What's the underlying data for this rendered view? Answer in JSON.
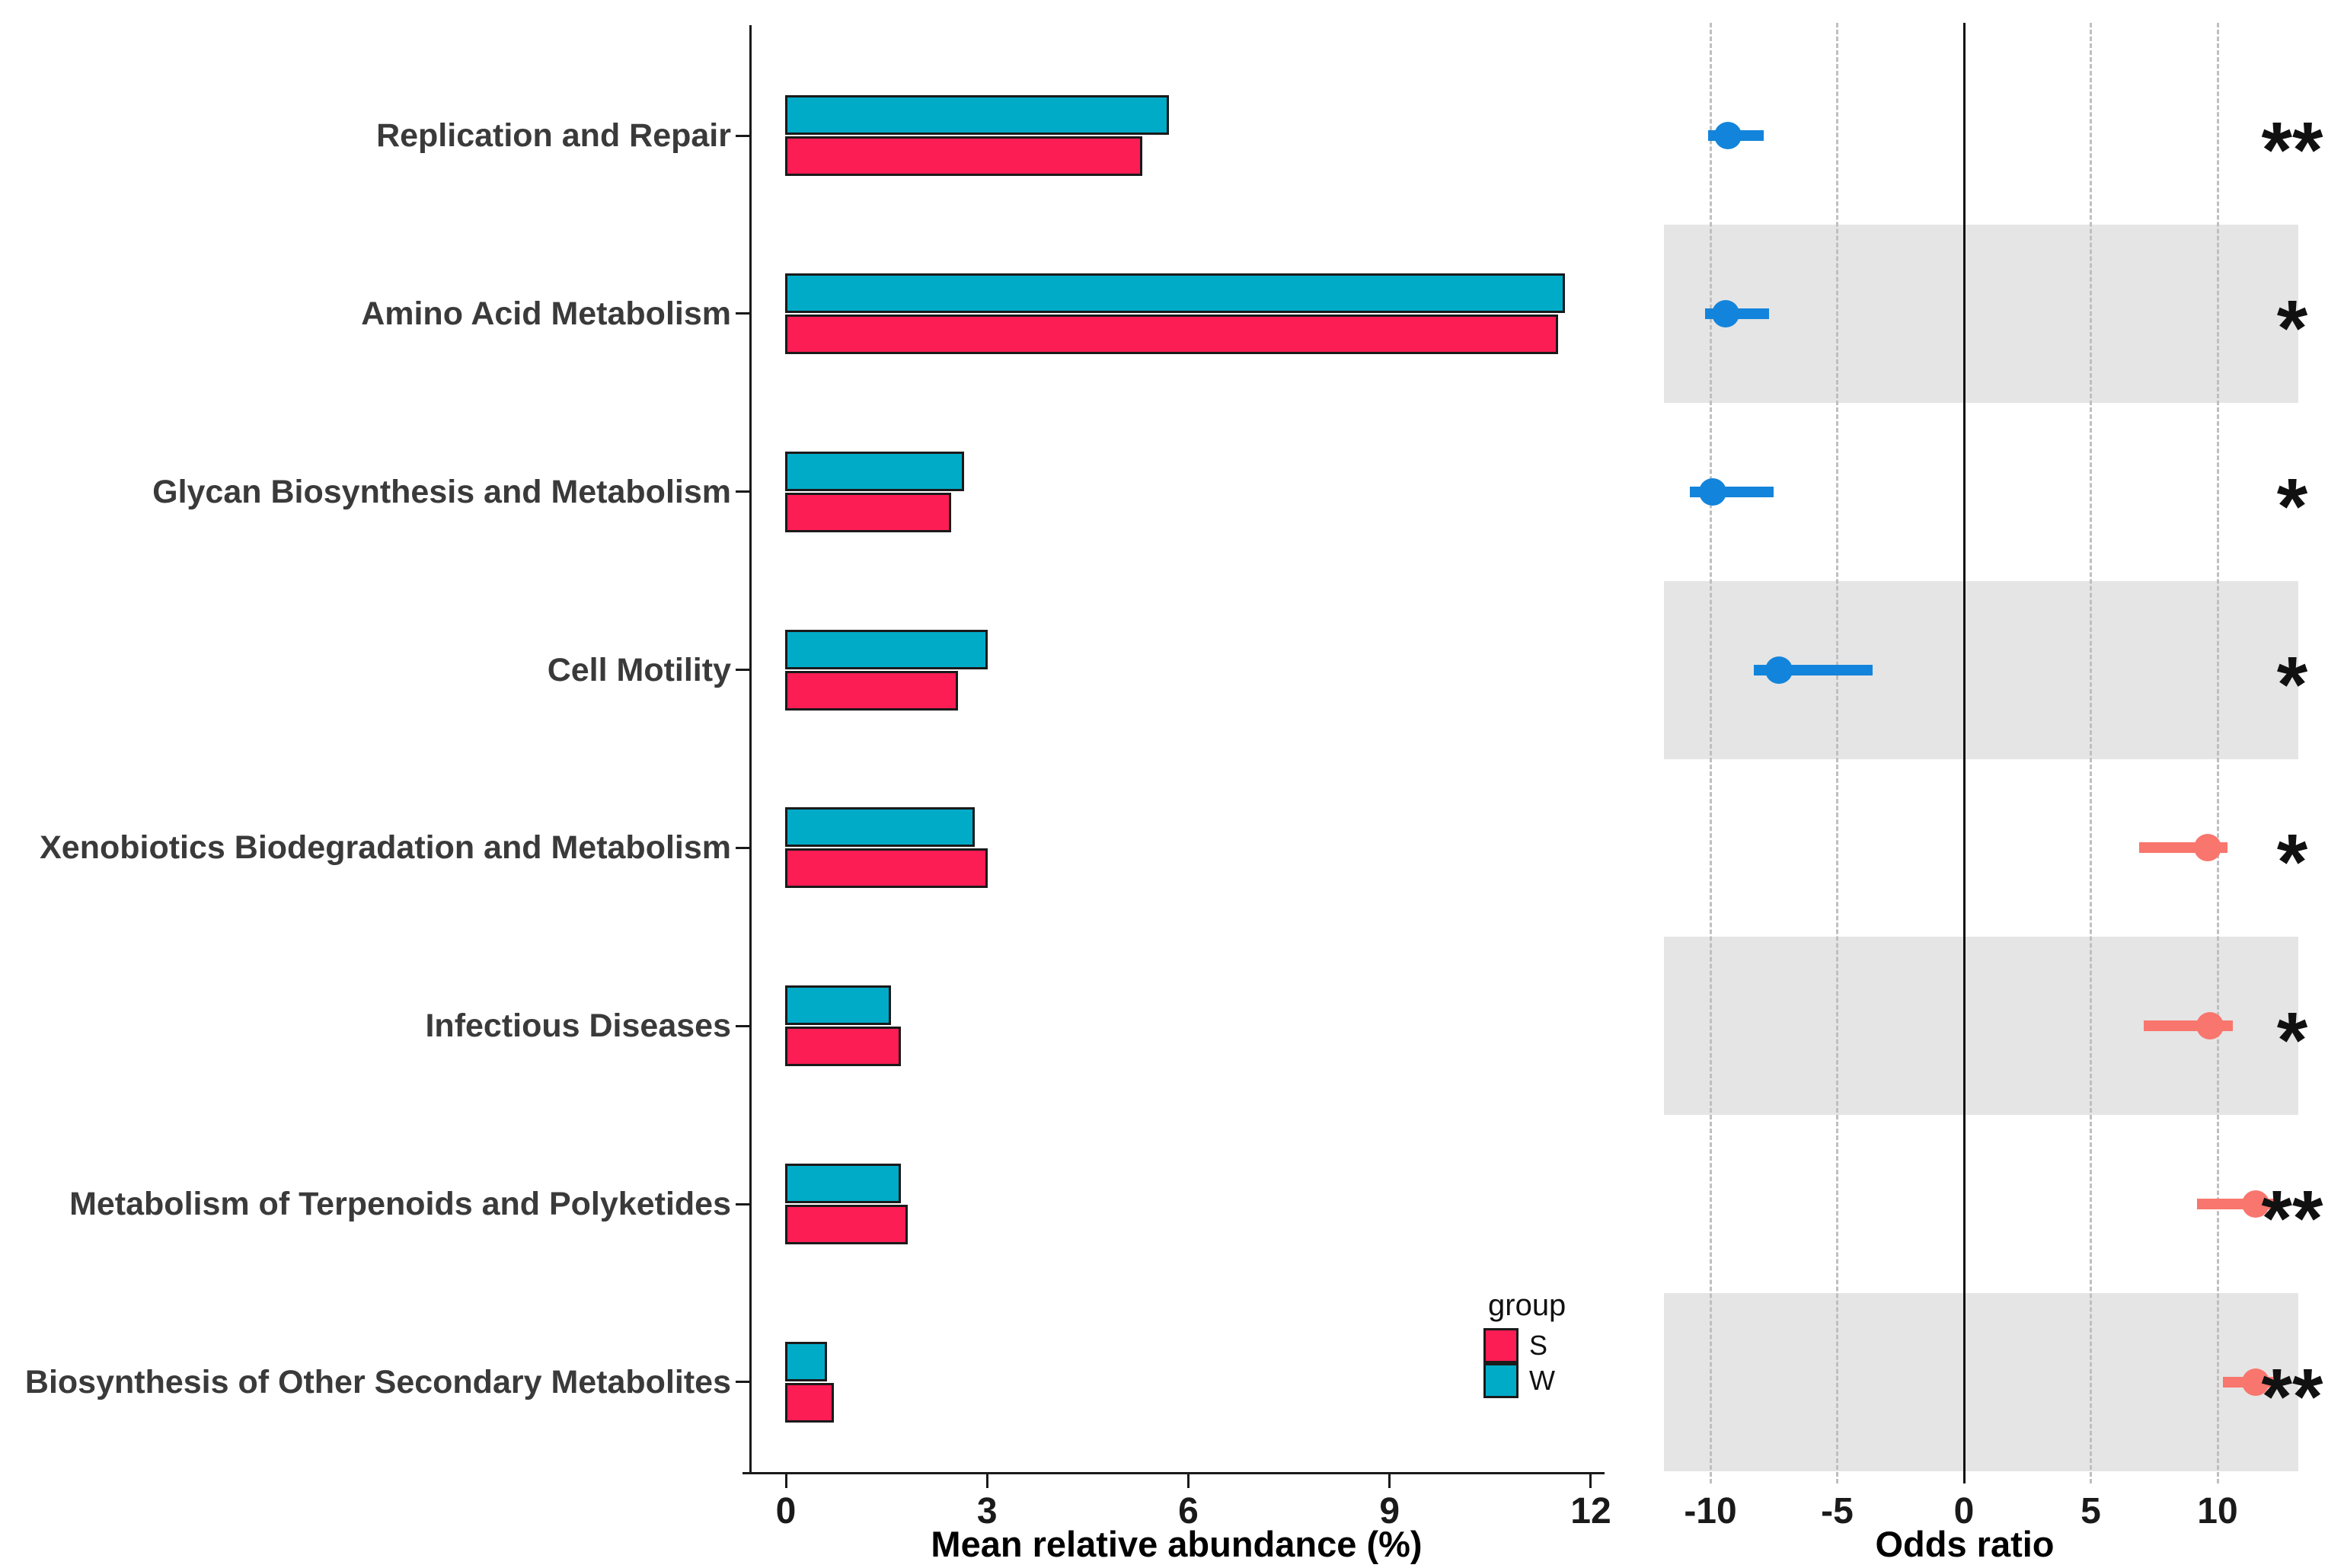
{
  "chart_data": [
    {
      "type": "bar",
      "orientation": "horizontal",
      "xlabel": "Mean relative abundance (%)",
      "xticks": [
        0,
        3,
        6,
        9,
        12
      ],
      "xlim": [
        0,
        12.3
      ],
      "grid": false,
      "bar_outline_color": "#1a1a1a",
      "categories": [
        "Replication and Repair",
        "Amino Acid Metabolism",
        "Glycan Biosynthesis and Metabolism",
        "Cell Motility",
        "Xenobiotics Biodegradation and Metabolism",
        "Infectious Diseases",
        "Metabolism of Terpenoids and Polyketides",
        "Biosynthesis of Other Secondary Metabolites"
      ],
      "series": [
        {
          "name": "S",
          "color": "#FD1D55",
          "values": [
            5.3,
            11.5,
            2.45,
            2.55,
            3.0,
            1.7,
            1.8,
            0.7
          ]
        },
        {
          "name": "W",
          "color": "#00ABC8",
          "values": [
            5.7,
            11.6,
            2.65,
            3.0,
            2.8,
            1.55,
            1.7,
            0.6
          ]
        }
      ],
      "legend": {
        "title": "group",
        "position": "inside-right, near bottom of bar panel",
        "items": [
          {
            "label": "S",
            "color": "#FD1D55"
          },
          {
            "label": "W",
            "color": "#00ABC8"
          }
        ]
      }
    },
    {
      "type": "scatter",
      "subtype": "forest-plot",
      "xlabel": "Odds ratio",
      "xticks": [
        -10,
        -5,
        0,
        5,
        10
      ],
      "xlim": [
        -11.8,
        13.2
      ],
      "zero_line_at": 0,
      "gridlines": {
        "style": "dashed",
        "color": "#bfbfbf",
        "at": [
          -10,
          -5,
          5,
          10
        ]
      },
      "row_shading": {
        "shaded_category_indexes": [
          1,
          3,
          5,
          7
        ],
        "color": "#e5e5e5"
      },
      "point_colors": {
        "negative": "#1384DB",
        "positive": "#F8766D"
      },
      "categories": [
        "Replication and Repair",
        "Amino Acid Metabolism",
        "Glycan Biosynthesis and Metabolism",
        "Cell Motility",
        "Xenobiotics Biodegradation and Metabolism",
        "Infectious Diseases",
        "Metabolism of Terpenoids and Polyketides",
        "Biosynthesis of Other Secondary Metabolites"
      ],
      "points": [
        {
          "category": "Replication and Repair",
          "or": -9.3,
          "ci": [
            -10.1,
            -7.9
          ],
          "significance": "**",
          "color": "#1384DB"
        },
        {
          "category": "Amino Acid Metabolism",
          "or": -9.4,
          "ci": [
            -10.2,
            -7.7
          ],
          "significance": "*",
          "color": "#1384DB"
        },
        {
          "category": "Glycan Biosynthesis and Metabolism",
          "or": -9.9,
          "ci": [
            -10.8,
            -7.5
          ],
          "significance": "*",
          "color": "#1384DB"
        },
        {
          "category": "Cell Motility",
          "or": -7.3,
          "ci": [
            -8.3,
            -3.6
          ],
          "significance": "*",
          "color": "#1384DB"
        },
        {
          "category": "Xenobiotics Biodegradation and Metabolism",
          "or": 9.6,
          "ci": [
            6.9,
            10.4
          ],
          "significance": "*",
          "color": "#F8766D"
        },
        {
          "category": "Infectious Diseases",
          "or": 9.7,
          "ci": [
            7.1,
            10.6
          ],
          "significance": "*",
          "color": "#F8766D"
        },
        {
          "category": "Metabolism of Terpenoids and Polyketides",
          "or": 11.5,
          "ci": [
            9.2,
            12.4
          ],
          "significance": "**",
          "color": "#F8766D"
        },
        {
          "category": "Biosynthesis of Other Secondary Metabolites",
          "or": 11.5,
          "ci": [
            10.2,
            12.2
          ],
          "significance": "**",
          "color": "#F8766D"
        }
      ]
    }
  ]
}
